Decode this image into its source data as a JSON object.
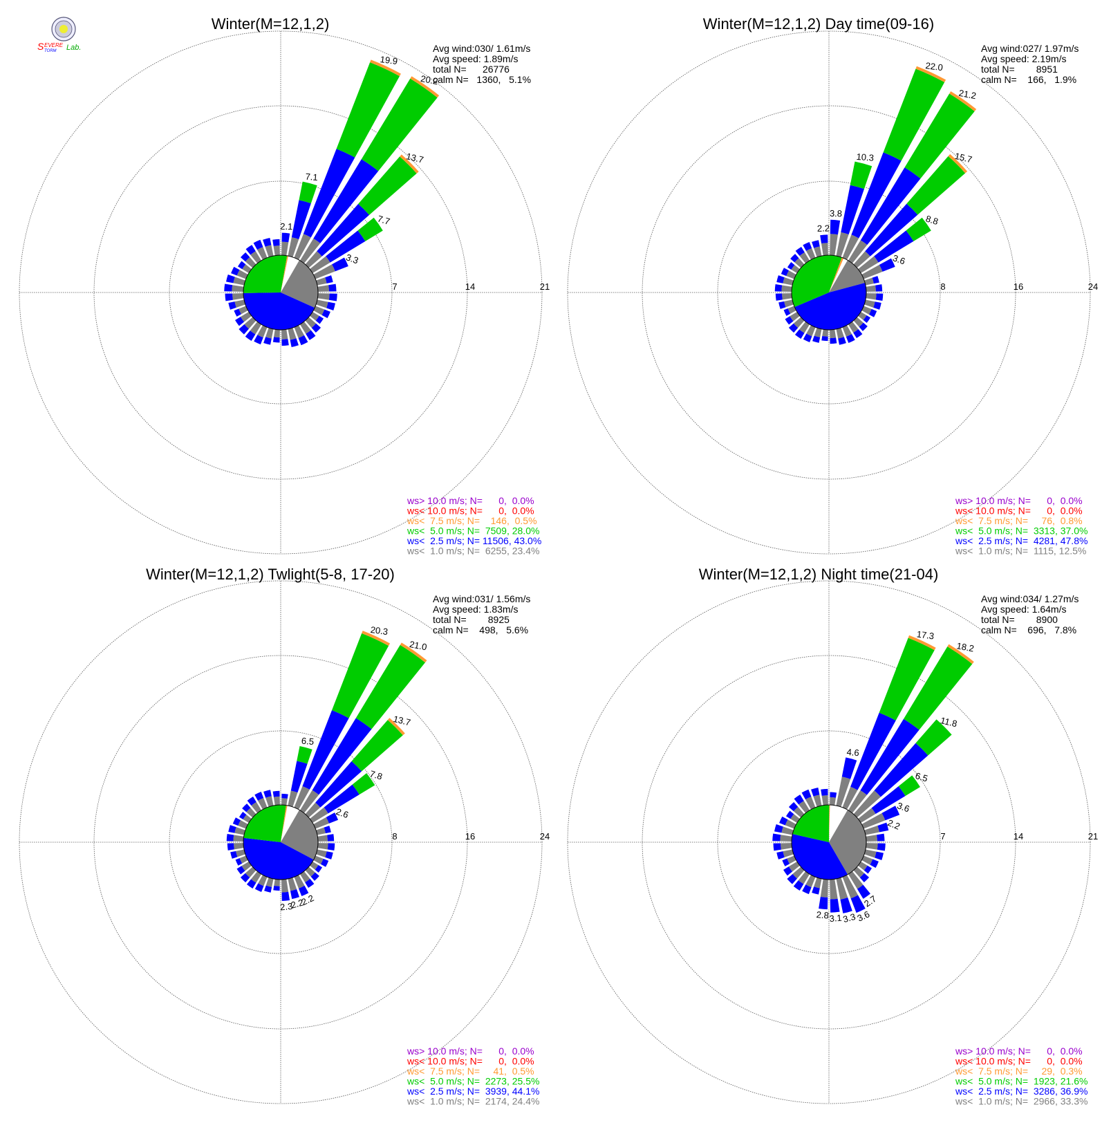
{
  "logo": {
    "text": "SEVERE STORM Lab.",
    "colors": [
      "#ff0000",
      "#0000ff",
      "#00aa00"
    ]
  },
  "colors": {
    "gt10": "#9900cc",
    "lt10": "#ff0000",
    "lt7_5": "#ff9933",
    "lt5": "#00cc00",
    "lt2_5": "#0000ff",
    "lt1": "#808080"
  },
  "chart_data": [
    {
      "type": "windrose",
      "title": "Winter(M=12,1,2)",
      "rings": [
        7,
        14,
        21
      ],
      "ring_labels": [
        "7",
        "14",
        "21"
      ],
      "stats": [
        "Avg wind:030/ 1.61m/s",
        "Avg speed: 1.89m/s",
        "total N=      26776",
        "calm N=   1360,   5.1%"
      ],
      "inner_pie": [
        23.4,
        43.0,
        28.0,
        0.5
      ],
      "bars": [
        {
          "dir": 5,
          "value": 2.1,
          "label": "2.1"
        },
        {
          "dir": 15,
          "value": 7.1,
          "label": "7.1"
        },
        {
          "dir": 25,
          "value": 19.9,
          "label": "19.9"
        },
        {
          "dir": 35,
          "value": 20.2,
          "label": "20.2"
        },
        {
          "dir": 45,
          "value": 13.7,
          "label": "13.7"
        },
        {
          "dir": 55,
          "value": 7.7,
          "label": "7.7"
        },
        {
          "dir": 65,
          "value": 3.3,
          "label": "3.3"
        }
      ],
      "legend": [
        "ws> 10.0 m/s; N=      0,  0.0%",
        "ws< 10.0 m/s; N=      0,  0.0%",
        "ws<  7.5 m/s; N=    146,  0.5%",
        "ws<  5.0 m/s; N=  7509, 28.0%",
        "ws<  2.5 m/s; N= 11506, 43.0%",
        "ws<  1.0 m/s; N=  6255, 23.4%"
      ]
    },
    {
      "type": "windrose",
      "title": "Winter(M=12,1,2) Day time(09-16)",
      "rings": [
        8,
        16,
        24
      ],
      "ring_labels": [
        "8",
        "16",
        "24"
      ],
      "stats": [
        "Avg wind:027/ 1.97m/s",
        "Avg speed: 2.19m/s",
        "total N=        8951",
        "calm N=    166,   1.9%"
      ],
      "inner_pie": [
        12.5,
        47.8,
        37.0,
        0.8
      ],
      "bars": [
        {
          "dir": -5,
          "value": 2.2,
          "label": "2.2"
        },
        {
          "dir": 5,
          "value": 3.8,
          "label": "3.8"
        },
        {
          "dir": 15,
          "value": 10.3,
          "label": "10.3"
        },
        {
          "dir": 25,
          "value": 22.0,
          "label": "22.0"
        },
        {
          "dir": 35,
          "value": 21.2,
          "label": "21.2"
        },
        {
          "dir": 45,
          "value": 15.7,
          "label": "15.7"
        },
        {
          "dir": 55,
          "value": 8.8,
          "label": "8.8"
        },
        {
          "dir": 65,
          "value": 3.6,
          "label": "3.6"
        }
      ],
      "legend": [
        "ws> 10.0 m/s; N=      0,  0.0%",
        "ws< 10.0 m/s; N=      0,  0.0%",
        "ws<  7.5 m/s; N=     76,  0.8%",
        "ws<  5.0 m/s; N=  3313, 37.0%",
        "ws<  2.5 m/s; N=  4281, 47.8%",
        "ws<  1.0 m/s; N=  1115, 12.5%"
      ]
    },
    {
      "type": "windrose",
      "title": "Winter(M=12,1,2) Twlight(5-8, 17-20)",
      "rings": [
        8,
        16,
        24
      ],
      "ring_labels": [
        "8",
        "16",
        "24"
      ],
      "stats": [
        "Avg wind:031/ 1.56m/s",
        "Avg speed: 1.83m/s",
        "total N=        8925",
        "calm N=    498,   5.6%"
      ],
      "inner_pie": [
        24.4,
        44.1,
        25.5,
        0.5
      ],
      "bars": [
        {
          "dir": 15,
          "value": 6.5,
          "label": "6.5"
        },
        {
          "dir": 25,
          "value": 20.3,
          "label": "20.3"
        },
        {
          "dir": 35,
          "value": 21.0,
          "label": "21.0"
        },
        {
          "dir": 45,
          "value": 13.7,
          "label": "13.7"
        },
        {
          "dir": 55,
          "value": 7.8,
          "label": "7.8"
        },
        {
          "dir": 65,
          "value": 2.6,
          "label": "2.6"
        },
        {
          "dir": 155,
          "value": 2.2,
          "label": "2.2"
        },
        {
          "dir": 165,
          "value": 2.2,
          "label": "2.2"
        },
        {
          "dir": 175,
          "value": 2.3,
          "label": "2.3"
        }
      ],
      "legend": [
        "ws> 10.0 m/s; N=      0,  0.0%",
        "ws< 10.0 m/s; N=      0,  0.0%",
        "ws<  7.5 m/s; N=     41,  0.5%",
        "ws<  5.0 m/s; N=  2273, 25.5%",
        "ws<  2.5 m/s; N=  3939, 44.1%",
        "ws<  1.0 m/s; N=  2174, 24.4%"
      ]
    },
    {
      "type": "windrose",
      "title": "Winter(M=12,1,2) Night time(21-04)",
      "rings": [
        7,
        14,
        21
      ],
      "ring_labels": [
        "7",
        "14",
        "21"
      ],
      "stats": [
        "Avg wind:034/ 1.27m/s",
        "Avg speed: 1.64m/s",
        "total N=        8900",
        "calm N=    696,   7.8%"
      ],
      "inner_pie": [
        33.3,
        36.9,
        21.6,
        0.3
      ],
      "bars": [
        {
          "dir": 15,
          "value": 4.6,
          "label": "4.6"
        },
        {
          "dir": 25,
          "value": 17.3,
          "label": "17.3"
        },
        {
          "dir": 35,
          "value": 18.2,
          "label": "18.2"
        },
        {
          "dir": 45,
          "value": 11.8,
          "label": "11.8"
        },
        {
          "dir": 55,
          "value": 6.5,
          "label": "6.5"
        },
        {
          "dir": 65,
          "value": 3.6,
          "label": "3.6"
        },
        {
          "dir": 75,
          "value": 2.2,
          "label": "2.2"
        },
        {
          "dir": 145,
          "value": 2.7,
          "label": "2.7"
        },
        {
          "dir": 155,
          "value": 3.6,
          "label": "3.6"
        },
        {
          "dir": 165,
          "value": 3.3,
          "label": "3.3"
        },
        {
          "dir": 175,
          "value": 3.1,
          "label": "3.1"
        },
        {
          "dir": 185,
          "value": 2.8,
          "label": "2.8"
        }
      ],
      "legend": [
        "ws> 10.0 m/s; N=      0,  0.0%",
        "ws< 10.0 m/s; N=      0,  0.0%",
        "ws<  7.5 m/s; N=     29,  0.3%",
        "ws<  5.0 m/s; N=  1923, 21.6%",
        "ws<  2.5 m/s; N=  3286, 36.9%",
        "ws<  1.0 m/s; N=  2966, 33.3%"
      ]
    }
  ]
}
